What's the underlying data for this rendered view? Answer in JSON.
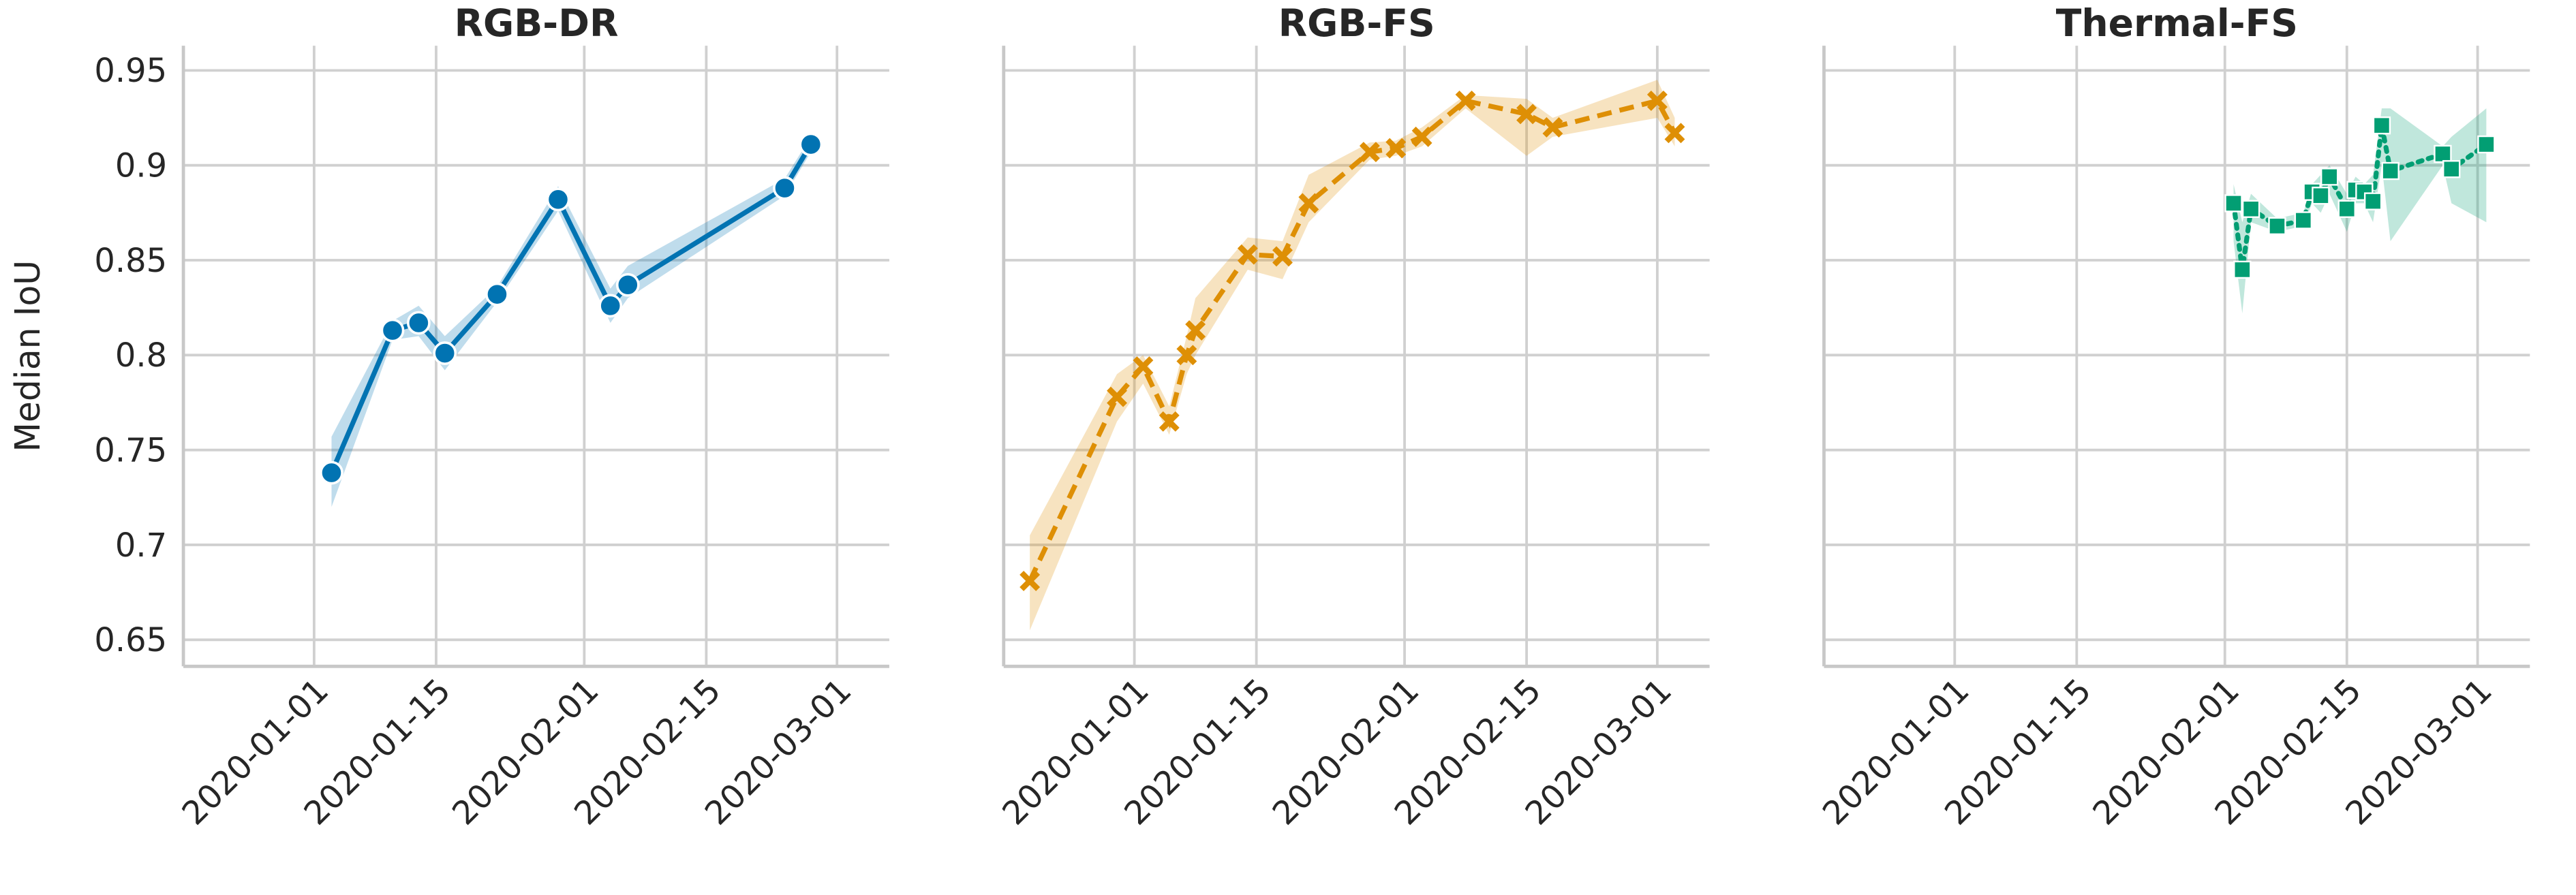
{
  "chart_data": [
    {
      "type": "line",
      "title": "RGB-DR",
      "ylabel": "Median IoU",
      "show_ytick_labels": true,
      "x": [
        "2020-01-03",
        "2020-01-10",
        "2020-01-13",
        "2020-01-16",
        "2020-01-22",
        "2020-01-29",
        "2020-02-04",
        "2020-02-06",
        "2020-02-24",
        "2020-02-27"
      ],
      "values": [
        0.738,
        0.813,
        0.817,
        0.801,
        0.832,
        0.882,
        0.826,
        0.837,
        0.888,
        0.911
      ],
      "ci_lower": [
        0.72,
        0.808,
        0.81,
        0.792,
        0.828,
        0.876,
        0.817,
        0.83,
        0.884,
        0.907
      ],
      "ci_upper": [
        0.757,
        0.818,
        0.826,
        0.81,
        0.836,
        0.889,
        0.835,
        0.847,
        0.893,
        0.915
      ],
      "color": "#0173b2",
      "linestyle": "solid",
      "marker": "circle",
      "xlim": [
        "2019-12-17",
        "2020-03-07"
      ],
      "xticks": [
        "2020-01-01",
        "2020-01-15",
        "2020-02-01",
        "2020-02-15",
        "2020-03-01"
      ],
      "ylim": [
        0.636,
        0.963
      ],
      "yticks": [
        0.65,
        0.7,
        0.75,
        0.8,
        0.85,
        0.9,
        0.95
      ],
      "grid": true
    },
    {
      "type": "line",
      "title": "RGB-FS",
      "show_ytick_labels": false,
      "x": [
        "2019-12-20",
        "2019-12-30",
        "2020-01-02",
        "2020-01-05",
        "2020-01-07",
        "2020-01-08",
        "2020-01-14",
        "2020-01-18",
        "2020-01-21",
        "2020-01-28",
        "2020-01-31",
        "2020-02-03",
        "2020-02-08",
        "2020-02-15",
        "2020-02-18",
        "2020-03-01",
        "2020-03-03"
      ],
      "values": [
        0.681,
        0.778,
        0.794,
        0.765,
        0.8,
        0.813,
        0.853,
        0.852,
        0.88,
        0.907,
        0.909,
        0.915,
        0.934,
        0.927,
        0.92,
        0.934,
        0.917
      ],
      "ci_lower": [
        0.655,
        0.765,
        0.785,
        0.758,
        0.79,
        0.8,
        0.845,
        0.84,
        0.87,
        0.903,
        0.905,
        0.91,
        0.93,
        0.905,
        0.915,
        0.925,
        0.91
      ],
      "ci_upper": [
        0.705,
        0.79,
        0.8,
        0.773,
        0.81,
        0.83,
        0.862,
        0.86,
        0.895,
        0.912,
        0.913,
        0.92,
        0.937,
        0.935,
        0.925,
        0.945,
        0.925
      ],
      "color": "#de8f05",
      "linestyle": "dashed",
      "marker": "x",
      "xlim": [
        "2019-12-17",
        "2020-03-07"
      ],
      "xticks": [
        "2020-01-01",
        "2020-01-15",
        "2020-02-01",
        "2020-02-15",
        "2020-03-01"
      ],
      "ylim": [
        0.636,
        0.963
      ],
      "yticks": [
        0.65,
        0.7,
        0.75,
        0.8,
        0.85,
        0.9,
        0.95
      ],
      "grid": true
    },
    {
      "type": "line",
      "title": "Thermal-FS",
      "show_ytick_labels": false,
      "x": [
        "2020-02-02",
        "2020-02-03",
        "2020-02-04",
        "2020-02-07",
        "2020-02-10",
        "2020-02-11",
        "2020-02-12",
        "2020-02-13",
        "2020-02-15",
        "2020-02-16",
        "2020-02-17",
        "2020-02-18",
        "2020-02-19",
        "2020-02-20",
        "2020-02-26",
        "2020-02-27",
        "2020-03-02"
      ],
      "values": [
        0.88,
        0.845,
        0.877,
        0.868,
        0.871,
        0.886,
        0.884,
        0.894,
        0.877,
        0.887,
        0.886,
        0.881,
        0.921,
        0.897,
        0.906,
        0.898,
        0.911
      ],
      "ci_lower": [
        0.86,
        0.822,
        0.87,
        0.865,
        0.868,
        0.88,
        0.875,
        0.885,
        0.865,
        0.88,
        0.88,
        0.87,
        0.9,
        0.86,
        0.9,
        0.88,
        0.87
      ],
      "ci_upper": [
        0.89,
        0.87,
        0.885,
        0.872,
        0.875,
        0.89,
        0.895,
        0.9,
        0.885,
        0.894,
        0.89,
        0.895,
        0.93,
        0.93,
        0.91,
        0.915,
        0.93
      ],
      "color": "#029e73",
      "linestyle": "dotted",
      "marker": "square",
      "xlim": [
        "2019-12-17",
        "2020-03-07"
      ],
      "xticks": [
        "2020-01-01",
        "2020-01-15",
        "2020-02-01",
        "2020-02-15",
        "2020-03-01"
      ],
      "ylim": [
        0.636,
        0.963
      ],
      "yticks": [
        0.65,
        0.7,
        0.75,
        0.8,
        0.85,
        0.9,
        0.95
      ],
      "grid": true
    }
  ]
}
